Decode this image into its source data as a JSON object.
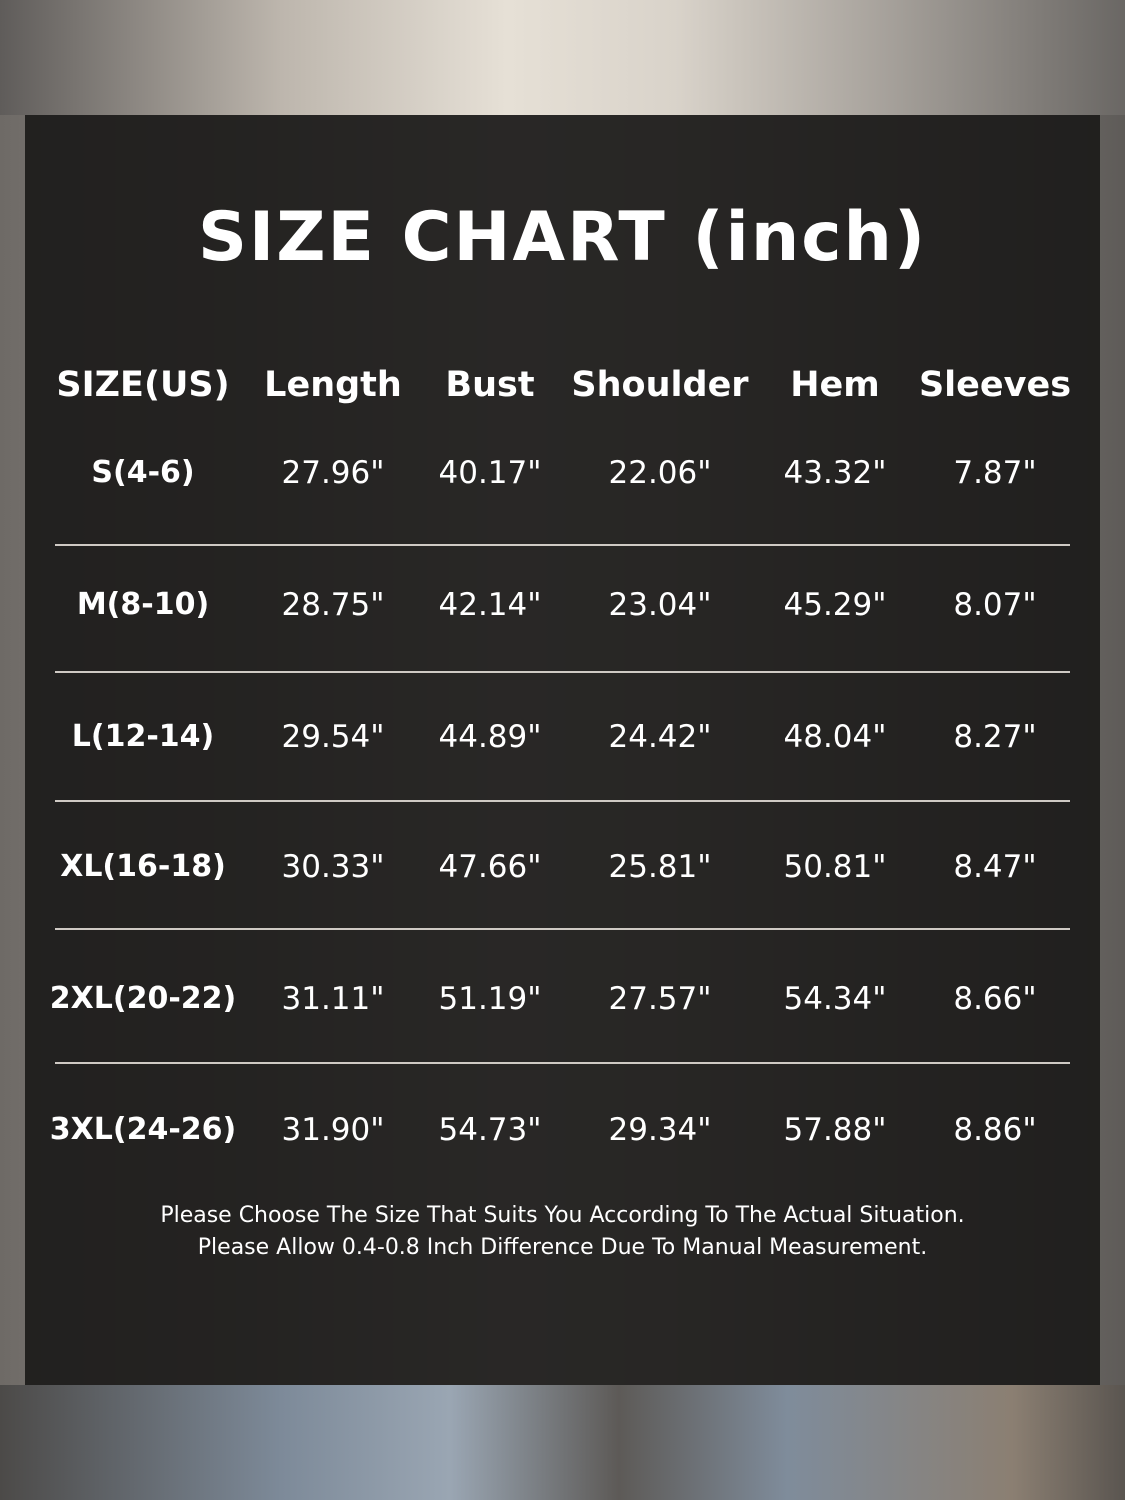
{
  "title": "SIZE CHART (inch)",
  "headers": [
    "SIZE(US)",
    "Length",
    "Bust",
    "Shoulder",
    "Hem",
    "Sleeves"
  ],
  "rows": [
    [
      "S(4-6)",
      "27.96\"",
      "40.17\"",
      "22.06\"",
      "43.32\"",
      "7.87\""
    ],
    [
      "M(8-10)",
      "28.75\"",
      "42.14\"",
      "23.04\"",
      "45.29\"",
      "8.07\""
    ],
    [
      "L(12-14)",
      "29.54\"",
      "44.89\"",
      "24.42\"",
      "48.04\"",
      "8.27\""
    ],
    [
      "XL(16-18)",
      "30.33\"",
      "47.66\"",
      "25.81\"",
      "50.81\"",
      "8.47\""
    ],
    [
      "2XL(20-22)",
      "31.11\"",
      "51.19\"",
      "27.57\"",
      "54.34\"",
      "8.66\""
    ],
    [
      "3XL(24-26)",
      "31.90\"",
      "54.73\"",
      "29.34\"",
      "57.88\"",
      "8.86\""
    ]
  ],
  "notes": [
    "Please Choose The Size That Suits You According To The Actual Situation.",
    "Please Allow 0.4-0.8 Inch Difference Due To Manual Measurement."
  ]
}
